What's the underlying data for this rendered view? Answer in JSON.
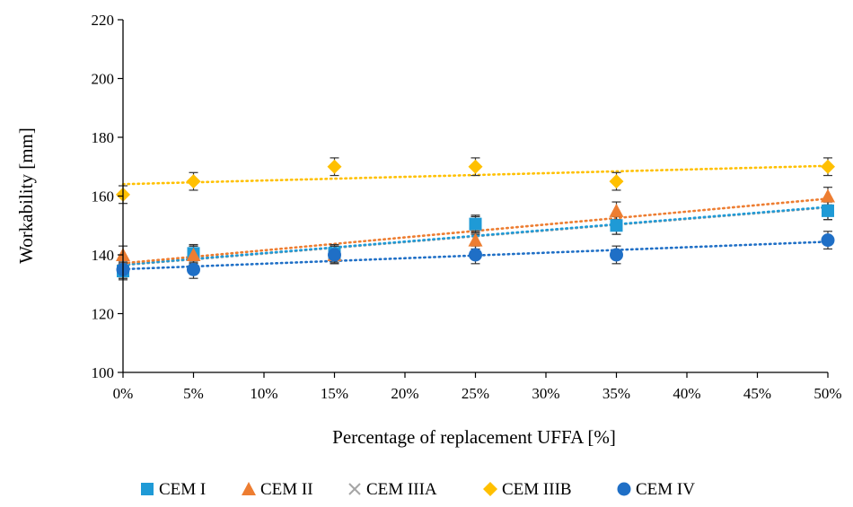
{
  "chart_data": {
    "type": "scatter",
    "xlabel": "Percentage of replacement UFFA [%]",
    "ylabel": "Workability [mm]",
    "x": [
      0,
      5,
      15,
      25,
      35,
      50
    ],
    "xlim": [
      0,
      50
    ],
    "xticks": [
      0,
      5,
      10,
      15,
      20,
      25,
      30,
      35,
      40,
      45,
      50
    ],
    "xtick_labels": [
      "0%",
      "5%",
      "10%",
      "15%",
      "20%",
      "25%",
      "30%",
      "35%",
      "40%",
      "45%",
      "50%"
    ],
    "ylim": [
      100,
      220
    ],
    "yticks": [
      100,
      120,
      140,
      160,
      180,
      200,
      220
    ],
    "ytick_labels": [
      "100",
      "120",
      "140",
      "160",
      "180",
      "200",
      "220"
    ],
    "grid": false,
    "legend_position": "bottom",
    "error_bar": 3,
    "trendline": "linear, dotted",
    "series": [
      {
        "name": "CEM I",
        "marker": "square",
        "color": "#1f9ad6",
        "values": [
          134.5,
          140.5,
          140.5,
          150.5,
          150,
          155
        ]
      },
      {
        "name": "CEM II",
        "marker": "triangle",
        "color": "#ed7d31",
        "values": [
          140,
          140,
          140,
          145,
          155,
          160
        ]
      },
      {
        "name": "CEM IIIA",
        "marker": "x",
        "color": "#a5a5a5",
        "values": [
          135,
          140,
          140,
          150,
          150,
          155
        ]
      },
      {
        "name": "CEM IIIB",
        "marker": "diamond",
        "color": "#ffc000",
        "values": [
          160.5,
          165,
          170,
          170,
          165,
          170
        ]
      },
      {
        "name": "CEM IV",
        "marker": "circle",
        "color": "#1f6fc6",
        "values": [
          135,
          135,
          140,
          140,
          140,
          145
        ]
      }
    ]
  }
}
